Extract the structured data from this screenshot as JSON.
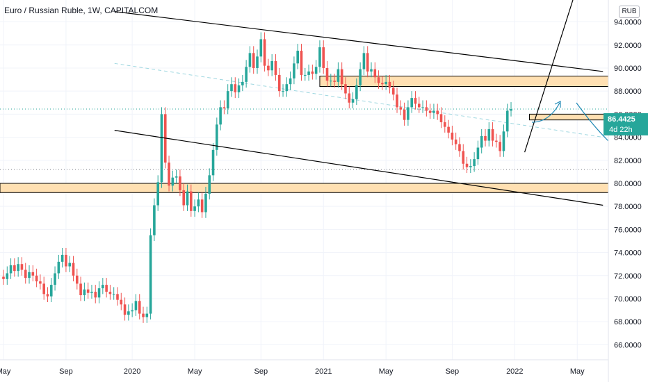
{
  "header": {
    "title": "Euro / Russian Ruble, 1W, CAPITALCOM",
    "currency_badge": "RUB"
  },
  "price_scale": {
    "last_price": "86.4425",
    "countdown": "4d 22h"
  },
  "colors": {
    "up": "#26a69a",
    "down": "#ef5350",
    "zone_fill": "#ffe0b2",
    "zone_border": "#000000",
    "trendline": "#000000",
    "dashed_line": "#9fd7e0",
    "arrow": "#1e88b5",
    "axis_text": "#131722",
    "grid": "#f0f3fa"
  },
  "chart_data": {
    "type": "candlestick",
    "title": "Euro / Russian Ruble, 1W, CAPITALCOM",
    "xlabel": "",
    "ylabel": "",
    "ylim": [
      64.7,
      95.9
    ],
    "grid": true,
    "y_ticks": [
      "66.0000",
      "68.0000",
      "70.0000",
      "72.0000",
      "74.0000",
      "76.0000",
      "78.0000",
      "80.0000",
      "82.0000",
      "84.0000",
      "86.0000",
      "88.0000",
      "90.0000",
      "92.0000",
      "94.0000"
    ],
    "x_tick_labels": [
      {
        "label": "May",
        "week": 0
      },
      {
        "label": "Sep",
        "week": 17
      },
      {
        "label": "2020",
        "week": 35
      },
      {
        "label": "May",
        "week": 52
      },
      {
        "label": "Sep",
        "week": 70
      },
      {
        "label": "2021",
        "week": 87
      },
      {
        "label": "May",
        "week": 104
      },
      {
        "label": "Sep",
        "week": 122
      },
      {
        "label": "2022",
        "week": 139
      },
      {
        "label": "May",
        "week": 156
      }
    ],
    "closes": [
      71.7,
      72.2,
      72.9,
      72.4,
      73.0,
      72.5,
      71.8,
      72.3,
      72.0,
      71.5,
      71.3,
      70.4,
      70.2,
      71.2,
      72.2,
      73.2,
      73.8,
      72.8,
      73.1,
      72.0,
      71.3,
      70.3,
      70.8,
      70.5,
      70.6,
      70.1,
      70.9,
      71.2,
      70.6,
      70.4,
      70.4,
      69.9,
      69.5,
      68.6,
      68.9,
      69.0,
      69.8,
      68.7,
      68.4,
      68.7,
      75.5,
      78.1,
      80.1,
      86.0,
      81.8,
      79.8,
      80.5,
      80.6,
      79.4,
      78.1,
      79.3,
      77.6,
      78.0,
      78.6,
      77.5,
      79.1,
      80.7,
      82.9,
      85.1,
      86.6,
      86.5,
      88.0,
      88.6,
      87.9,
      88.5,
      88.8,
      90.1,
      91.3,
      90.0,
      91.0,
      92.5,
      90.2,
      89.8,
      90.6,
      89.4,
      88.0,
      88.0,
      88.6,
      89.1,
      90.4,
      91.5,
      89.4,
      89.4,
      89.7,
      89.5,
      90.1,
      91.8,
      90.0,
      88.9,
      88.9,
      88.8,
      89.9,
      88.6,
      87.8,
      87.0,
      87.3,
      88.5,
      89.9,
      91.3,
      89.7,
      89.9,
      89.2,
      88.7,
      88.6,
      88.8,
      88.3,
      87.7,
      86.6,
      86.4,
      85.5,
      86.6,
      87.4,
      86.9,
      86.6,
      86.6,
      86.3,
      86.1,
      86.3,
      86.0,
      85.3,
      84.9,
      84.4,
      83.8,
      83.4,
      82.8,
      81.7,
      81.4,
      81.5,
      82.1,
      83.1,
      84.1,
      83.7,
      84.7,
      83.7,
      83.6,
      82.8,
      84.5,
      86.3,
      86.4425
    ],
    "opens": [
      71.9,
      71.7,
      72.2,
      72.9,
      72.4,
      73.0,
      72.5,
      71.8,
      72.3,
      72.0,
      71.5,
      71.3,
      70.4,
      70.2,
      71.2,
      72.2,
      73.2,
      73.8,
      72.8,
      73.1,
      72.0,
      71.3,
      70.3,
      70.8,
      70.5,
      70.6,
      70.1,
      70.9,
      71.2,
      70.6,
      70.4,
      70.4,
      69.9,
      69.5,
      68.6,
      68.9,
      69.0,
      69.8,
      68.7,
      68.4,
      68.7,
      75.5,
      78.1,
      80.1,
      86.0,
      81.8,
      79.8,
      80.5,
      80.6,
      79.4,
      78.1,
      79.3,
      77.6,
      78.0,
      78.6,
      77.5,
      79.1,
      80.7,
      82.9,
      85.1,
      86.6,
      86.5,
      88.0,
      88.6,
      87.9,
      88.5,
      88.8,
      90.1,
      91.3,
      90.0,
      91.0,
      92.5,
      90.2,
      89.8,
      90.6,
      89.4,
      88.0,
      88.0,
      88.6,
      89.1,
      90.4,
      91.5,
      89.4,
      89.4,
      89.7,
      89.5,
      90.1,
      91.8,
      90.0,
      88.9,
      88.9,
      88.8,
      89.9,
      88.6,
      87.8,
      87.0,
      87.3,
      88.5,
      89.9,
      91.3,
      89.7,
      89.9,
      89.2,
      88.7,
      88.6,
      88.8,
      88.3,
      87.7,
      86.6,
      86.4,
      85.5,
      86.6,
      87.4,
      86.9,
      86.6,
      86.6,
      86.3,
      86.1,
      86.3,
      86.0,
      85.3,
      84.9,
      84.4,
      83.8,
      83.4,
      82.8,
      81.7,
      81.4,
      81.5,
      82.1,
      83.1,
      84.1,
      83.7,
      84.7,
      83.7,
      83.6,
      82.8,
      84.5,
      86.3
    ],
    "last_price": 86.4425,
    "zones": [
      {
        "y_low": 88.4,
        "y_high": 89.3
      },
      {
        "y_low": 85.5,
        "y_high": 86.0
      },
      {
        "y_low": 79.2,
        "y_high": 80.0
      }
    ],
    "trendlines": [
      {
        "x1": 30.2,
        "y1": 94.9,
        "x2": 163,
        "y2": 89.7
      },
      {
        "x1": 30.2,
        "y1": 84.6,
        "x2": 163,
        "y2": 78.1
      },
      {
        "x1": 141.7,
        "y1": 82.7,
        "x2": 155.9,
        "y2": 97.0
      }
    ],
    "dashed_line": {
      "x1": 30.2,
      "y1": 90.4,
      "x2": 163,
      "y2": 84.0
    },
    "horizontal_dotted": [
      {
        "y": 86.4425
      },
      {
        "y": 81.2
      }
    ]
  }
}
